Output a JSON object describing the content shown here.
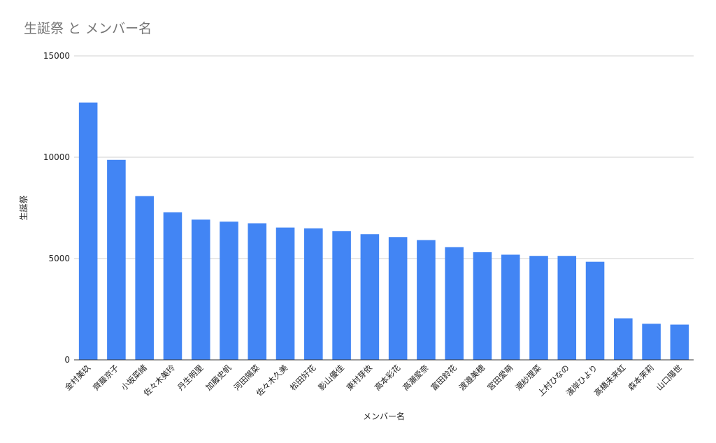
{
  "chart_data": {
    "type": "bar",
    "title": "生誕祭 と メンバー名",
    "xlabel": "メンバー名",
    "ylabel": "生誕祭",
    "ylim": [
      0,
      15000
    ],
    "yticks": [
      0,
      5000,
      10000,
      15000
    ],
    "grid": true,
    "color": "#4285f4",
    "categories": [
      "金村美玖",
      "齊藤京子",
      "小坂菜緒",
      "佐々木美玲",
      "丹生明里",
      "加藤史帆",
      "河田陽菜",
      "佐々木久美",
      "松田好花",
      "影山優佳",
      "東村芽依",
      "高本彩花",
      "高瀬愛奈",
      "富田鈴花",
      "渡邉美穂",
      "宮田愛萌",
      "潮紗理菜",
      "上村ひなの",
      "濱岸ひより",
      "髙橋未来虹",
      "森本茉莉",
      "山口陽世"
    ],
    "values": [
      12700,
      9870,
      8080,
      7280,
      6920,
      6820,
      6740,
      6530,
      6490,
      6350,
      6200,
      6060,
      5910,
      5560,
      5310,
      5190,
      5130,
      5130,
      4840,
      2050,
      1780,
      1740
    ]
  }
}
